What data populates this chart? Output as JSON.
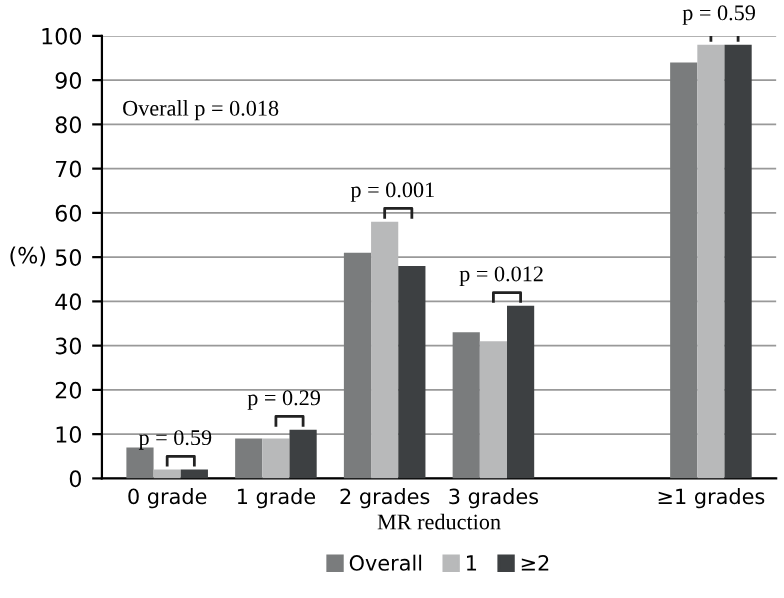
{
  "chart_data": {
    "type": "bar",
    "xlabel": "MR reduction",
    "ylabel": "(%)",
    "categories": [
      "0 grade",
      "1 grade",
      "2 grades",
      "3 grades",
      null,
      "≥1 grades"
    ],
    "series": [
      {
        "name": "Overall",
        "color": "#7a7c7d",
        "values": [
          7,
          9,
          51,
          33,
          null,
          94
        ]
      },
      {
        "name": "1",
        "color": "#b8b9ba",
        "values": [
          2,
          9,
          58,
          31,
          null,
          98
        ]
      },
      {
        "name": "≥2",
        "color": "#3d4042",
        "values": [
          2,
          11,
          48,
          39,
          null,
          98
        ]
      }
    ],
    "ylim": [
      0,
      100
    ],
    "yticks": [
      0,
      10,
      20,
      30,
      40,
      50,
      60,
      70,
      80,
      90,
      100
    ],
    "grid": "y",
    "legend": "bottom",
    "annotations": [
      "Overall p = 0.018",
      "p = 0.59",
      "p = 0.29",
      "p = 0.001",
      "p = 0.012",
      "p = 0.59"
    ]
  }
}
